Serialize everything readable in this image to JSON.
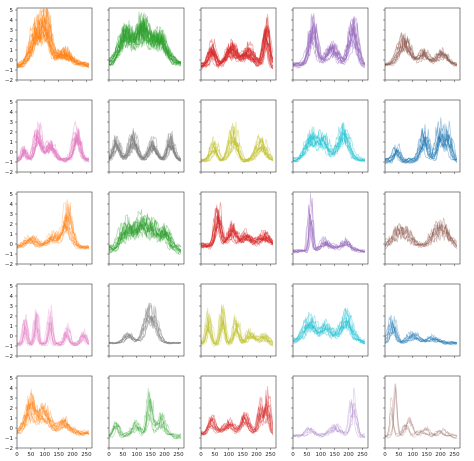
{
  "chart_data": {
    "type": "line",
    "description_free": true,
    "rows": 5,
    "cols": 5,
    "xlim": [
      0,
      270
    ],
    "ylim": [
      -2,
      5.2
    ],
    "xticks": [
      0,
      50,
      100,
      150,
      200,
      250
    ],
    "yticks": [
      -2,
      -1,
      0,
      1,
      2,
      3,
      4,
      5
    ],
    "grid": false,
    "panels": [
      {
        "color": "#ff7f0e",
        "traces": 18,
        "alpha": 0.45,
        "peaks": [
          [
            70,
            3.0,
            20
          ],
          [
            105,
            3.5,
            16
          ],
          [
            170,
            1.2,
            25
          ]
        ],
        "base": -0.5,
        "noise": 0.5
      },
      {
        "color": "#2ca02c",
        "traces": 20,
        "alpha": 0.45,
        "peaks": [
          [
            60,
            2.6,
            22
          ],
          [
            120,
            3.0,
            22
          ],
          [
            180,
            2.2,
            25
          ]
        ],
        "base": -0.3,
        "noise": 0.6
      },
      {
        "color": "#d62728",
        "traces": 20,
        "alpha": 0.45,
        "peaks": [
          [
            40,
            1.8,
            12
          ],
          [
            110,
            1.8,
            20
          ],
          [
            170,
            1.5,
            20
          ],
          [
            235,
            3.8,
            10
          ]
        ],
        "base": -0.6,
        "noise": 0.7
      },
      {
        "color": "#9467bd",
        "traces": 14,
        "alpha": 0.45,
        "peaks": [
          [
            70,
            3.2,
            14
          ],
          [
            140,
            1.5,
            20
          ],
          [
            215,
            3.2,
            15
          ]
        ],
        "base": -0.5,
        "noise": 0.5
      },
      {
        "color": "#8c564b",
        "traces": 10,
        "alpha": 0.45,
        "peaks": [
          [
            70,
            2.0,
            22
          ],
          [
            140,
            1.0,
            16
          ],
          [
            205,
            1.0,
            20
          ]
        ],
        "base": -0.5,
        "noise": 0.3
      },
      {
        "color": "#e377c2",
        "traces": 14,
        "alpha": 0.45,
        "peaks": [
          [
            25,
            1.0,
            8
          ],
          [
            75,
            2.6,
            12
          ],
          [
            120,
            1.5,
            15
          ],
          [
            215,
            2.5,
            12
          ]
        ],
        "base": -0.8,
        "noise": 0.4
      },
      {
        "color": "#7f7f7f",
        "traces": 16,
        "alpha": 0.45,
        "peaks": [
          [
            30,
            1.6,
            12
          ],
          [
            90,
            2.0,
            14
          ],
          [
            160,
            1.5,
            14
          ],
          [
            225,
            1.8,
            12
          ]
        ],
        "base": -0.8,
        "noise": 0.3
      },
      {
        "color": "#bcbd22",
        "traces": 12,
        "alpha": 0.45,
        "peaks": [
          [
            50,
            1.6,
            12
          ],
          [
            120,
            2.6,
            15
          ],
          [
            220,
            1.8,
            18
          ]
        ],
        "base": -0.9,
        "noise": 0.3
      },
      {
        "color": "#17becf",
        "traces": 10,
        "alpha": 0.45,
        "peaks": [
          [
            65,
            2.0,
            18
          ],
          [
            110,
            2.0,
            18
          ],
          [
            185,
            2.6,
            20
          ]
        ],
        "base": -0.8,
        "noise": 0.4
      },
      {
        "color": "#1f77b4",
        "traces": 12,
        "alpha": 0.45,
        "peaks": [
          [
            40,
            1.2,
            10
          ],
          [
            140,
            2.5,
            14
          ],
          [
            195,
            2.8,
            10
          ],
          [
            225,
            2.5,
            12
          ]
        ],
        "base": -0.9,
        "noise": 0.5
      },
      {
        "color": "#ff7f0e",
        "traces": 14,
        "alpha": 0.35,
        "peaks": [
          [
            50,
            0.8,
            20
          ],
          [
            130,
            1.0,
            20
          ],
          [
            180,
            3.0,
            15
          ]
        ],
        "base": -0.3,
        "noise": 0.4
      },
      {
        "color": "#2ca02c",
        "traces": 14,
        "alpha": 0.45,
        "peaks": [
          [
            60,
            2.0,
            20
          ],
          [
            110,
            2.0,
            20
          ],
          [
            150,
            2.0,
            20
          ],
          [
            200,
            1.6,
            20
          ]
        ],
        "base": -0.6,
        "noise": 0.9
      },
      {
        "color": "#d62728",
        "traces": 16,
        "alpha": 0.45,
        "peaks": [
          [
            60,
            3.3,
            10
          ],
          [
            110,
            1.5,
            14
          ],
          [
            160,
            1.0,
            20
          ],
          [
            230,
            1.0,
            20
          ]
        ],
        "base": -0.2,
        "noise": 0.6
      },
      {
        "color": "#9467bd",
        "traces": 10,
        "alpha": 0.45,
        "peaks": [
          [
            65,
            4.1,
            6
          ],
          [
            120,
            0.8,
            20
          ],
          [
            190,
            0.8,
            20
          ]
        ],
        "base": -0.7,
        "noise": 0.3
      },
      {
        "color": "#8c564b",
        "traces": 8,
        "alpha": 0.4,
        "peaks": [
          [
            60,
            1.8,
            35
          ],
          [
            200,
            2.0,
            32
          ]
        ],
        "base": -0.6,
        "noise": 0.3
      },
      {
        "color": "#e377c2",
        "traces": 12,
        "alpha": 0.35,
        "peaks": [
          [
            30,
            2.0,
            6
          ],
          [
            70,
            2.5,
            6
          ],
          [
            120,
            2.5,
            6
          ],
          [
            180,
            1.2,
            8
          ],
          [
            240,
            1.0,
            8
          ]
        ],
        "base": -0.8,
        "noise": 0.4
      },
      {
        "color": "#7f7f7f",
        "traces": 8,
        "alpha": 0.5,
        "peaks": [
          [
            70,
            0.8,
            15
          ],
          [
            150,
            3.0,
            20
          ]
        ],
        "base": -0.7,
        "noise": 0.1
      },
      {
        "color": "#bcbd22",
        "traces": 12,
        "alpha": 0.4,
        "peaks": [
          [
            30,
            2.5,
            8
          ],
          [
            80,
            3.0,
            8
          ],
          [
            130,
            2.0,
            10
          ],
          [
            180,
            1.0,
            15
          ],
          [
            230,
            0.8,
            15
          ]
        ],
        "base": -0.8,
        "noise": 0.5
      },
      {
        "color": "#17becf",
        "traces": 12,
        "alpha": 0.4,
        "peaks": [
          [
            60,
            1.8,
            20
          ],
          [
            120,
            1.2,
            20
          ],
          [
            190,
            2.0,
            20
          ]
        ],
        "base": -0.5,
        "noise": 0.6
      },
      {
        "color": "#1f77b4",
        "traces": 10,
        "alpha": 0.4,
        "peaks": [
          [
            25,
            2.0,
            12
          ],
          [
            100,
            0.8,
            20
          ],
          [
            170,
            0.5,
            20
          ]
        ],
        "base": -0.7,
        "noise": 0.3
      },
      {
        "color": "#ff7f0e",
        "traces": 12,
        "alpha": 0.4,
        "peaks": [
          [
            50,
            2.7,
            18
          ],
          [
            100,
            2.0,
            20
          ],
          [
            170,
            1.0,
            20
          ]
        ],
        "base": -0.5,
        "noise": 0.5
      },
      {
        "color": "#2ca02c",
        "traces": 8,
        "alpha": 0.35,
        "peaks": [
          [
            30,
            1.0,
            10
          ],
          [
            100,
            1.0,
            15
          ],
          [
            150,
            3.0,
            10
          ],
          [
            190,
            1.5,
            15
          ]
        ],
        "base": -0.8,
        "noise": 0.5
      },
      {
        "color": "#d62728",
        "traces": 12,
        "alpha": 0.4,
        "peaks": [
          [
            40,
            1.2,
            12
          ],
          [
            100,
            1.0,
            15
          ],
          [
            160,
            1.5,
            15
          ],
          [
            215,
            2.5,
            8
          ],
          [
            240,
            3.0,
            8
          ]
        ],
        "base": -0.5,
        "noise": 0.6
      },
      {
        "color": "#9467bd",
        "traces": 6,
        "alpha": 0.3,
        "peaks": [
          [
            60,
            0.6,
            15
          ],
          [
            150,
            0.8,
            20
          ],
          [
            215,
            3.0,
            10
          ]
        ],
        "base": -0.8,
        "noise": 0.4
      },
      {
        "color": "#8c564b",
        "traces": 6,
        "alpha": 0.3,
        "peaks": [
          [
            30,
            4.0,
            6
          ],
          [
            80,
            1.5,
            12
          ],
          [
            140,
            0.6,
            15
          ],
          [
            200,
            0.5,
            15
          ]
        ],
        "base": -0.8,
        "noise": 0.4
      }
    ]
  }
}
